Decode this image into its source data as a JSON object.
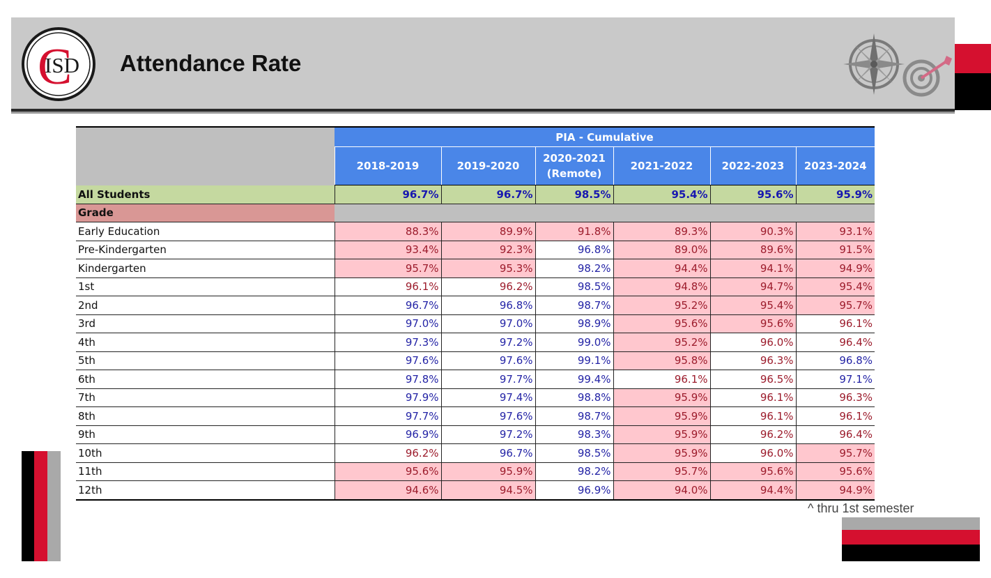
{
  "header": {
    "title": "Attendance Rate",
    "logo_text": "ISD",
    "logo_letter": "C"
  },
  "table": {
    "group_header": "PIA - Cumulative",
    "columns": [
      {
        "label": "2018-2019"
      },
      {
        "label": "2019-2020"
      },
      {
        "label": "2020-2021\n(Remote)"
      },
      {
        "label": "2021-2022"
      },
      {
        "label": "2022-2023"
      },
      {
        "label": "2023-2024"
      }
    ],
    "all_students": {
      "label": "All Students",
      "values": [
        "96.7%",
        "96.7%",
        "98.5%",
        "95.4%",
        "95.6%",
        "95.9%"
      ]
    },
    "grade_header": "Grade",
    "rows": [
      {
        "label": "Early Education",
        "values": [
          "88.3%",
          "89.9%",
          "91.8%",
          "89.3%",
          "90.3%",
          "93.1%"
        ],
        "highlight": [
          1,
          1,
          1,
          1,
          1,
          1
        ],
        "tone": [
          "red",
          "red",
          "red",
          "red",
          "red",
          "red"
        ]
      },
      {
        "label": "Pre-Kindergarten",
        "values": [
          "93.4%",
          "92.3%",
          "96.8%",
          "89.0%",
          "89.6%",
          "91.5%"
        ],
        "highlight": [
          1,
          1,
          0,
          1,
          1,
          1
        ],
        "tone": [
          "red",
          "red",
          "blue",
          "red",
          "red",
          "red"
        ]
      },
      {
        "label": "Kindergarten",
        "values": [
          "95.7%",
          "95.3%",
          "98.2%",
          "94.4%",
          "94.1%",
          "94.9%"
        ],
        "highlight": [
          1,
          1,
          0,
          1,
          1,
          1
        ],
        "tone": [
          "red",
          "red",
          "blue",
          "red",
          "red",
          "red"
        ]
      },
      {
        "label": "1st",
        "values": [
          "96.1%",
          "96.2%",
          "98.5%",
          "94.8%",
          "94.7%",
          "95.4%"
        ],
        "highlight": [
          0,
          0,
          0,
          1,
          1,
          1
        ],
        "tone": [
          "red",
          "red",
          "blue",
          "red",
          "red",
          "red"
        ]
      },
      {
        "label": "2nd",
        "values": [
          "96.7%",
          "96.8%",
          "98.7%",
          "95.2%",
          "95.4%",
          "95.7%"
        ],
        "highlight": [
          0,
          0,
          0,
          1,
          1,
          1
        ],
        "tone": [
          "blue",
          "blue",
          "blue",
          "red",
          "red",
          "red"
        ]
      },
      {
        "label": "3rd",
        "values": [
          "97.0%",
          "97.0%",
          "98.9%",
          "95.6%",
          "95.6%",
          "96.1%"
        ],
        "highlight": [
          0,
          0,
          0,
          1,
          1,
          0
        ],
        "tone": [
          "blue",
          "blue",
          "blue",
          "red",
          "red",
          "red"
        ]
      },
      {
        "label": "4th",
        "values": [
          "97.3%",
          "97.2%",
          "99.0%",
          "95.2%",
          "96.0%",
          "96.4%"
        ],
        "highlight": [
          0,
          0,
          0,
          1,
          0,
          0
        ],
        "tone": [
          "blue",
          "blue",
          "blue",
          "red",
          "red",
          "red"
        ]
      },
      {
        "label": "5th",
        "values": [
          "97.6%",
          "97.6%",
          "99.1%",
          "95.8%",
          "96.3%",
          "96.8%"
        ],
        "highlight": [
          0,
          0,
          0,
          1,
          0,
          0
        ],
        "tone": [
          "blue",
          "blue",
          "blue",
          "red",
          "red",
          "blue"
        ]
      },
      {
        "label": "6th",
        "values": [
          "97.8%",
          "97.7%",
          "99.4%",
          "96.1%",
          "96.5%",
          "97.1%"
        ],
        "highlight": [
          0,
          0,
          0,
          0,
          0,
          0
        ],
        "tone": [
          "blue",
          "blue",
          "blue",
          "red",
          "red",
          "blue"
        ]
      },
      {
        "label": "7th",
        "values": [
          "97.9%",
          "97.4%",
          "98.8%",
          "95.9%",
          "96.1%",
          "96.3%"
        ],
        "highlight": [
          0,
          0,
          0,
          1,
          0,
          0
        ],
        "tone": [
          "blue",
          "blue",
          "blue",
          "red",
          "red",
          "red"
        ]
      },
      {
        "label": "8th",
        "values": [
          "97.7%",
          "97.6%",
          "98.7%",
          "95.9%",
          "96.1%",
          "96.1%"
        ],
        "highlight": [
          0,
          0,
          0,
          1,
          0,
          0
        ],
        "tone": [
          "blue",
          "blue",
          "blue",
          "red",
          "red",
          "red"
        ]
      },
      {
        "label": "9th",
        "values": [
          "96.9%",
          "97.2%",
          "98.3%",
          "95.9%",
          "96.2%",
          "96.4%"
        ],
        "highlight": [
          0,
          0,
          0,
          1,
          0,
          0
        ],
        "tone": [
          "blue",
          "blue",
          "blue",
          "red",
          "red",
          "red"
        ]
      },
      {
        "label": "10th",
        "values": [
          "96.2%",
          "96.7%",
          "98.5%",
          "95.9%",
          "96.0%",
          "95.7%"
        ],
        "highlight": [
          0,
          0,
          0,
          1,
          0,
          1
        ],
        "tone": [
          "red",
          "blue",
          "blue",
          "red",
          "red",
          "red"
        ]
      },
      {
        "label": "11th",
        "values": [
          "95.6%",
          "95.9%",
          "98.2%",
          "95.7%",
          "95.6%",
          "95.6%"
        ],
        "highlight": [
          1,
          1,
          0,
          1,
          1,
          1
        ],
        "tone": [
          "red",
          "red",
          "blue",
          "red",
          "red",
          "red"
        ]
      },
      {
        "label": "12th",
        "values": [
          "94.6%",
          "94.5%",
          "96.9%",
          "94.0%",
          "94.4%",
          "94.9%"
        ],
        "highlight": [
          1,
          1,
          0,
          1,
          1,
          1
        ],
        "tone": [
          "red",
          "red",
          "blue",
          "red",
          "red",
          "red"
        ]
      }
    ]
  },
  "footnote": "^ thru 1st semester",
  "colors": {
    "header_bg": "#c9c9c9",
    "accent_red": "#d5102f",
    "column_header_blue": "#4a86e8",
    "all_students_green": "#c5d9a0",
    "grade_header_rose": "#d99795",
    "highlight_pink": "#ffc7ce",
    "value_blue": "#2424a6",
    "value_red": "#9c1c2c"
  },
  "icons": {
    "logo": "cisd-logo-icon",
    "compass": "compass-rose-icon",
    "target": "target-dart-icon"
  }
}
